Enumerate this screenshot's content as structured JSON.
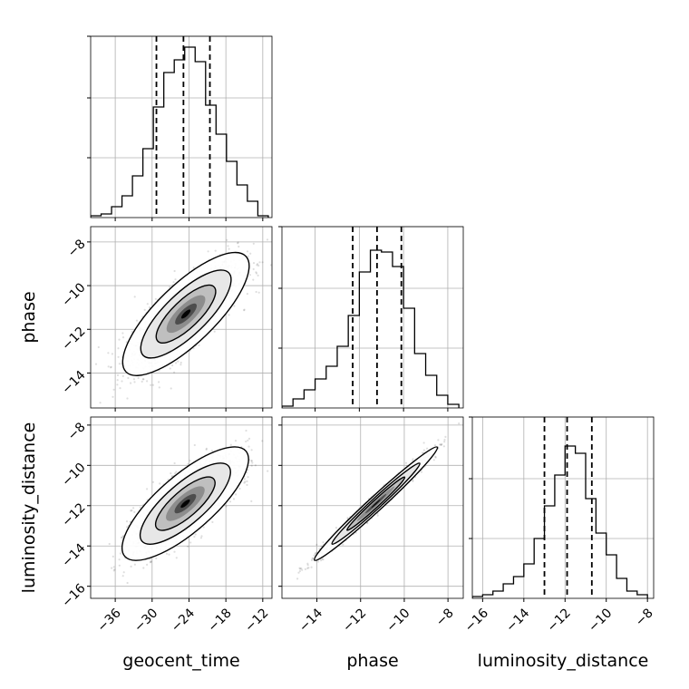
{
  "chart_data": {
    "type": "corner",
    "parameters": [
      "geocent_time",
      "phase",
      "luminosity_distance"
    ],
    "grid": true,
    "quantile_lines": "dashed",
    "panels": [
      {
        "name": "geocent_time",
        "kind": "histogram",
        "xlim": [
          -40,
          -10.5
        ],
        "ylim": [
          0,
          1
        ],
        "xticks": [],
        "bins": [
          -40,
          -38.3,
          -36.6,
          -34.9,
          -33.2,
          -31.5,
          -29.8,
          -28.1,
          -26.4,
          -24.7,
          -23.0,
          -21.3,
          -19.6,
          -17.9,
          -16.2,
          -14.5,
          -12.8,
          -11.1
        ],
        "counts": [
          0.01,
          0.02,
          0.06,
          0.12,
          0.23,
          0.38,
          0.61,
          0.8,
          0.87,
          0.94,
          0.86,
          0.62,
          0.46,
          0.31,
          0.18,
          0.09,
          0.01
        ],
        "quantiles": [
          -29.3,
          -24.9,
          -20.6
        ]
      },
      {
        "name": "phase",
        "kind": "histogram",
        "xlim": [
          -15.5,
          -7.3
        ],
        "ylim": [
          0,
          1
        ],
        "xticks": [],
        "bins": [
          -15.5,
          -15.0,
          -14.5,
          -14.0,
          -13.5,
          -13.0,
          -12.5,
          -12.0,
          -11.5,
          -11.0,
          -10.5,
          -10.0,
          -9.5,
          -9.0,
          -8.5,
          -8.0,
          -7.5
        ],
        "counts": [
          0.01,
          0.05,
          0.1,
          0.16,
          0.23,
          0.34,
          0.51,
          0.75,
          0.87,
          0.86,
          0.78,
          0.55,
          0.3,
          0.18,
          0.07,
          0.02
        ],
        "quantiles": [
          -12.3,
          -11.2,
          -10.1
        ]
      },
      {
        "name": "luminosity_distance",
        "kind": "histogram",
        "xlim": [
          -16.5,
          -7.7
        ],
        "ylim": [
          0,
          1
        ],
        "xticks": [
          -16,
          -14,
          -12,
          -10,
          -8
        ],
        "xlabel": "luminosity_distance",
        "bins": [
          -16.5,
          -16.0,
          -15.5,
          -15.0,
          -14.5,
          -14.0,
          -13.5,
          -13.0,
          -12.5,
          -12.0,
          -11.5,
          -11.0,
          -10.5,
          -10.0,
          -9.5,
          -9.0,
          -8.5,
          -8.0
        ],
        "counts": [
          0.01,
          0.02,
          0.04,
          0.08,
          0.12,
          0.19,
          0.33,
          0.51,
          0.68,
          0.84,
          0.8,
          0.55,
          0.36,
          0.24,
          0.11,
          0.04,
          0.02
        ],
        "quantiles": [
          -13.0,
          -11.9,
          -10.7
        ]
      },
      {
        "name": "phase-vs-geocent_time",
        "kind": "density",
        "x": "geocent_time",
        "y": "phase",
        "xlim": [
          -40,
          -10.5
        ],
        "ylim": [
          -15.6,
          -7.3
        ],
        "xticks": [],
        "yticks": [
          -14,
          -12,
          -10,
          -8
        ],
        "ylabel": "phase",
        "center": [
          -24.5,
          -11.3
        ],
        "sigma": [
          4.2,
          1.15
        ],
        "correlation": 0.78
      },
      {
        "name": "luminosity_distance-vs-geocent_time",
        "kind": "density",
        "x": "geocent_time",
        "y": "luminosity_distance",
        "xlim": [
          -40,
          -10.5
        ],
        "ylim": [
          -16.6,
          -7.6
        ],
        "xticks": [
          -36,
          -30,
          -24,
          -18,
          -12
        ],
        "yticks": [
          -16,
          -14,
          -12,
          -10,
          -8
        ],
        "xlabel": "geocent_time",
        "ylabel": "luminosity_distance",
        "center": [
          -24.6,
          -11.9
        ],
        "sigma": [
          4.2,
          1.15
        ],
        "correlation": 0.78
      },
      {
        "name": "luminosity_distance-vs-phase",
        "kind": "density",
        "x": "phase",
        "y": "luminosity_distance",
        "xlim": [
          -15.6,
          -7.3
        ],
        "ylim": [
          -16.6,
          -7.6
        ],
        "xticks": [
          -14,
          -12,
          -10,
          -8
        ],
        "yticks": [],
        "xlabel": "phase",
        "center": [
          -11.3,
          -11.9
        ],
        "sigma": [
          1.15,
          1.15
        ],
        "correlation": 0.985
      }
    ]
  }
}
